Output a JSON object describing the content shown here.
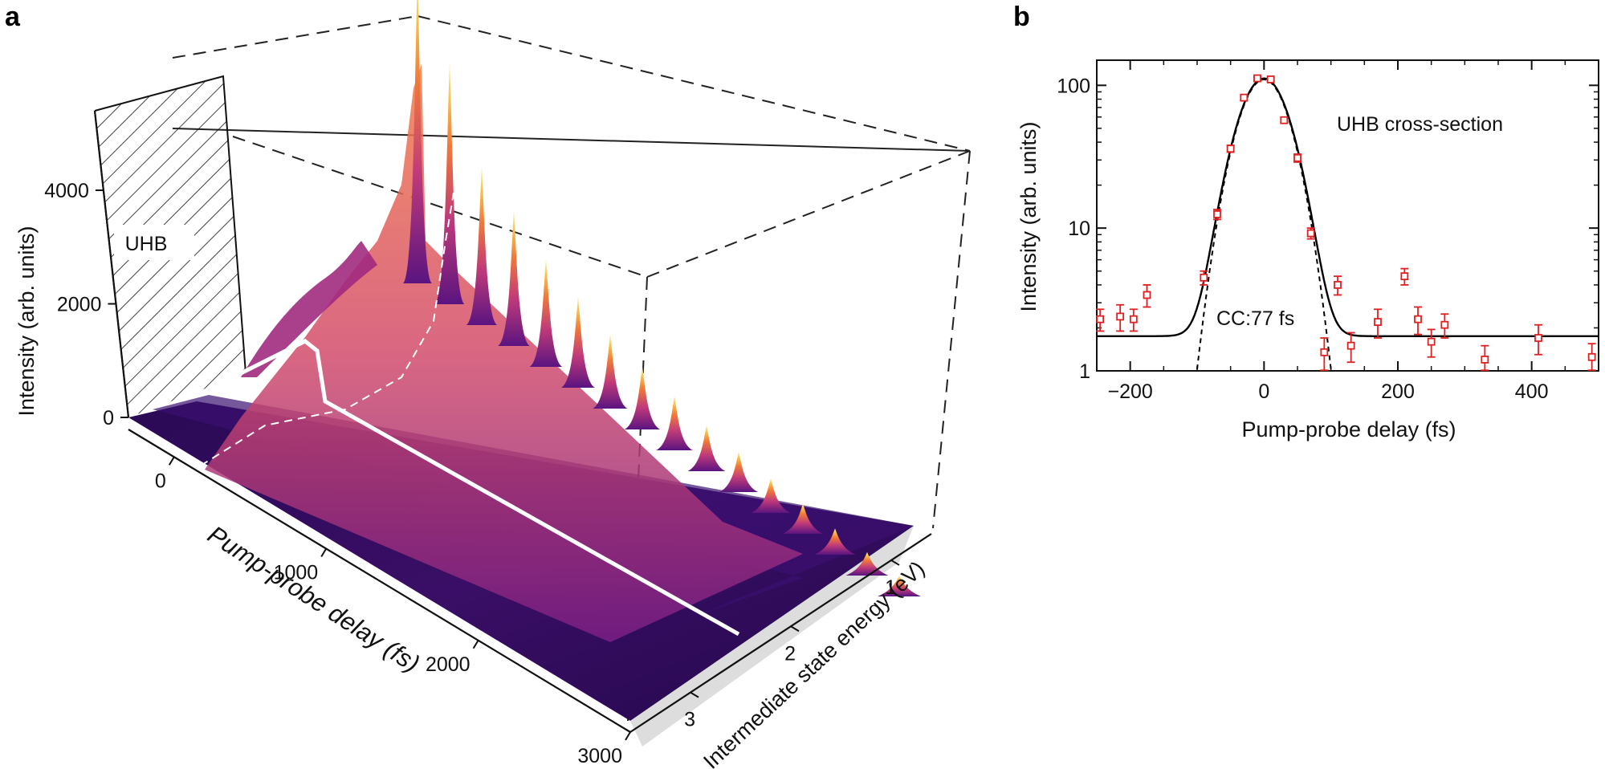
{
  "panels": {
    "a": {
      "letter": "a"
    },
    "b": {
      "letter": "b"
    }
  },
  "chart_data": [
    {
      "panel": "a",
      "type": "surface3d",
      "title": "",
      "xlabel": "Pump-probe delay (fs)",
      "ylabel": "Intermediate state energy (eV)",
      "zlabel": "Intensity (arb. units)",
      "x_ticks": [
        "0",
        "1000",
        "2000",
        "3000"
      ],
      "y_ticks": [
        "1",
        "2",
        "3"
      ],
      "z_ticks": [
        "0",
        "2000",
        "4000"
      ],
      "xlim": [
        -300,
        3000
      ],
      "ylim": [
        0.6,
        3.6
      ],
      "zlim": [
        0,
        5400
      ],
      "wall_label": "UHB",
      "oscillation_peaks": {
        "x": [
          0,
          130,
          260,
          390,
          520,
          650,
          780,
          910,
          1040,
          1170,
          1300,
          1430,
          1560,
          1690,
          1820,
          1950
        ],
        "z": [
          5400,
          4200,
          2700,
          2300,
          1800,
          1500,
          1200,
          1000,
          850,
          700,
          600,
          500,
          420,
          350,
          300,
          250
        ]
      },
      "colormap": [
        "#1a0540",
        "#4b1078",
        "#9a2a84",
        "#d8496a",
        "#f68a2c",
        "#fbd050",
        "#f8f0a8"
      ]
    },
    {
      "panel": "b",
      "type": "scatter",
      "title": "",
      "xlabel": "Pump-probe delay (fs)",
      "ylabel": "Intensity (arb. units)",
      "xlim": [
        -250,
        500
      ],
      "ylim": [
        1,
        150
      ],
      "yscale": "log",
      "x_ticks": [
        -200,
        0,
        200,
        400
      ],
      "x_tick_labels": [
        "−200",
        "0",
        "200",
        "400"
      ],
      "y_ticks": [
        1,
        10,
        100
      ],
      "y_tick_labels": [
        "1",
        "10",
        "100"
      ],
      "annotations": [
        "UHB cross-section",
        "CC:77 fs"
      ],
      "series": [
        {
          "marker": "square",
          "color": "#e02020",
          "x": [
            -245,
            -215,
            -195,
            -175,
            -90,
            -70,
            -50,
            -30,
            -10,
            10,
            30,
            50,
            70,
            90,
            110,
            130,
            170,
            210,
            230,
            250,
            270,
            330,
            410,
            490
          ],
          "y": [
            2.3,
            2.4,
            2.3,
            3.4,
            4.5,
            12.5,
            36,
            82,
            112,
            110,
            57,
            31,
            9.2,
            1.35,
            4.0,
            1.5,
            2.2,
            4.6,
            2.3,
            1.6,
            2.1,
            1.2,
            1.7,
            1.25
          ],
          "yerr": [
            0.4,
            0.5,
            0.4,
            0.6,
            0.5,
            1.0,
            2.0,
            3.0,
            3.0,
            3.0,
            2.0,
            2.0,
            0.8,
            0.35,
            0.6,
            0.35,
            0.5,
            0.6,
            0.5,
            0.35,
            0.4,
            0.3,
            0.4,
            0.3
          ]
        }
      ],
      "fit_curve": {
        "style": "solid",
        "color": "#000000",
        "amplitude": 110,
        "sigma": 32.7,
        "background": 1.75
      },
      "cc_curve": {
        "style": "dashed",
        "color": "#000000",
        "amplitude": 110,
        "sigma": 32.7,
        "background": 0
      }
    }
  ]
}
